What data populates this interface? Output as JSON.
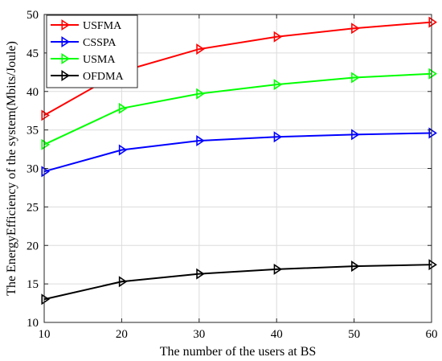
{
  "chart_data": {
    "type": "line",
    "xlabel": "The number of the users at BS",
    "ylabel": "The EnergyEfficiency of the system(Mbits/Joule)",
    "x": [
      10,
      20,
      30,
      40,
      50,
      60
    ],
    "xlim": [
      10,
      60
    ],
    "ylim": [
      10,
      50
    ],
    "xticks": [
      10,
      20,
      30,
      40,
      50,
      60
    ],
    "yticks": [
      10,
      15,
      20,
      25,
      30,
      35,
      40,
      45,
      50
    ],
    "grid": true,
    "legend_position": "top-left",
    "marker": "right-pointing-triangle",
    "series": [
      {
        "name": "USFMA",
        "color": "#ff0000",
        "values": [
          36.9,
          42.6,
          45.5,
          47.1,
          48.2,
          49.0
        ]
      },
      {
        "name": "CSSPA",
        "color": "#0000ff",
        "values": [
          29.6,
          32.4,
          33.6,
          34.1,
          34.4,
          34.6
        ]
      },
      {
        "name": "USMA",
        "color": "#00ff00",
        "values": [
          33.1,
          37.8,
          39.7,
          40.9,
          41.8,
          42.3
        ]
      },
      {
        "name": "OFDMA",
        "color": "#000000",
        "values": [
          13.0,
          15.3,
          16.3,
          16.9,
          17.3,
          17.5
        ]
      }
    ]
  }
}
